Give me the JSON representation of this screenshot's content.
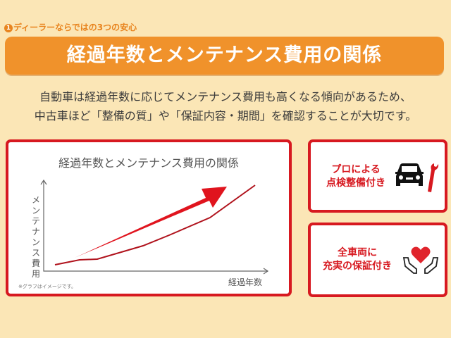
{
  "header": {
    "step_number": "1",
    "subtitle": "ディーラーならではの3つの安心",
    "title": "経過年数とメンテナンス費用の関係"
  },
  "description": {
    "line1": "自動車は経過年数に応じてメンテナンス費用も高くなる傾向があるため、",
    "line2": "中古車ほど「整備の質」や「保証内容・期間」を確認することが大切です。"
  },
  "chart": {
    "title": "経過年数とメンテナンス費用の関係",
    "y_axis_label": "メンテナンス費用",
    "x_axis_label": "経過年数",
    "note": "※グラフはイメージです。",
    "trend": "increasing"
  },
  "features": [
    {
      "line1": "プロによる",
      "line2": "点検整備付き",
      "icon": "car-wrench-icon"
    },
    {
      "line1": "全車両に",
      "line2": "充実の保証付き",
      "icon": "heart-hands-icon"
    }
  ],
  "colors": {
    "background": "#fbe6b6",
    "banner": "#f0922b",
    "accent_red": "#d71920"
  }
}
